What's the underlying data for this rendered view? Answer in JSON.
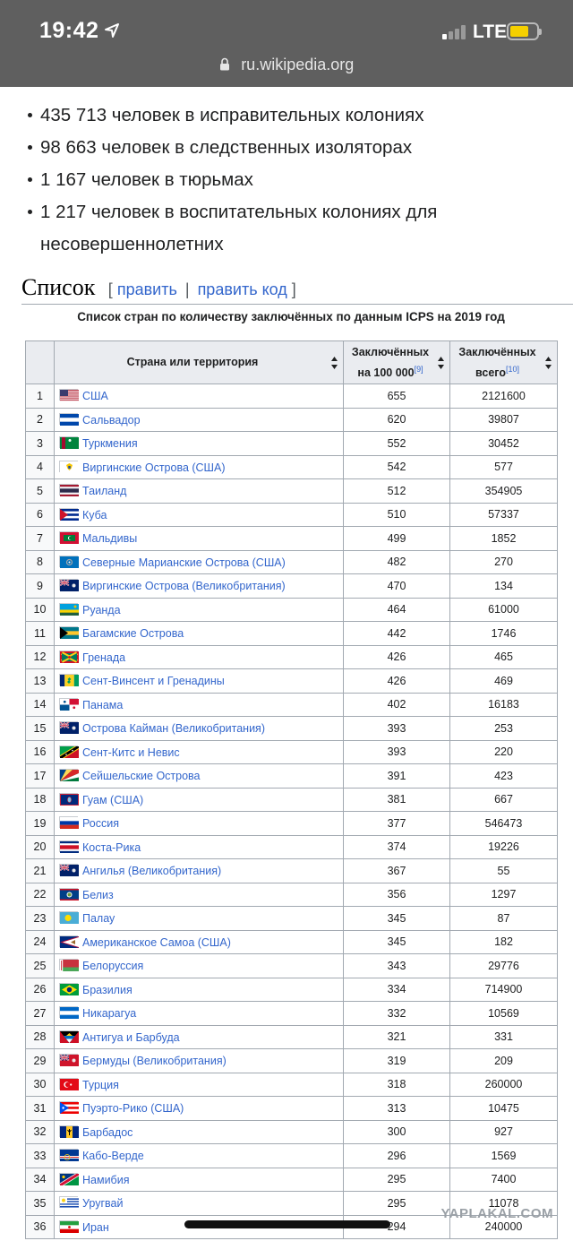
{
  "status_bar": {
    "time": "19:42",
    "network": "LTE"
  },
  "address_bar": {
    "url": "ru.wikipedia.org"
  },
  "bullets": [
    "435 713 человек в исправительных колониях",
    "98 663 человек в следственных изоляторах",
    "1 167 человек в тюрьмах",
    "1 217 человек в воспитательных колониях для несовершеннолетних"
  ],
  "section": {
    "title": "Список",
    "open_bracket": "[",
    "edit": "править",
    "separator": "|",
    "edit_code": "править код",
    "close_bracket": "]"
  },
  "table": {
    "caption": "Список стран по количеству заключённых по данным ICPS на 2019 год",
    "headers": {
      "country": "Страна или территория",
      "per100k": "Заключённых на 100 000",
      "per100k_ref": "[9]",
      "total": "Заключённых всего",
      "total_ref": "[10]"
    },
    "rows": [
      {
        "n": "1",
        "country": "США",
        "flag": "usa",
        "per100k": "655",
        "total": "2121600"
      },
      {
        "n": "2",
        "country": "Сальвадор",
        "flag": "el-salvador",
        "per100k": "620",
        "total": "39807"
      },
      {
        "n": "3",
        "country": "Туркмения",
        "flag": "turkmenistan",
        "per100k": "552",
        "total": "30452"
      },
      {
        "n": "4",
        "country": "Виргинские Острова (США)",
        "flag": "us-virgin-islands",
        "per100k": "542",
        "total": "577"
      },
      {
        "n": "5",
        "country": "Таиланд",
        "flag": "thailand",
        "per100k": "512",
        "total": "354905"
      },
      {
        "n": "6",
        "country": "Куба",
        "flag": "cuba",
        "per100k": "510",
        "total": "57337"
      },
      {
        "n": "7",
        "country": "Мальдивы",
        "flag": "maldives",
        "per100k": "499",
        "total": "1852"
      },
      {
        "n": "8",
        "country": "Северные Марианские Острова (США)",
        "flag": "northern-mariana-islands",
        "per100k": "482",
        "total": "270"
      },
      {
        "n": "9",
        "country": "Виргинские Острова (Великобритания)",
        "flag": "british-virgin-islands",
        "per100k": "470",
        "total": "134"
      },
      {
        "n": "10",
        "country": "Руанда",
        "flag": "rwanda",
        "per100k": "464",
        "total": "61000"
      },
      {
        "n": "11",
        "country": "Багамские Острова",
        "flag": "bahamas",
        "per100k": "442",
        "total": "1746"
      },
      {
        "n": "12",
        "country": "Гренада",
        "flag": "grenada",
        "per100k": "426",
        "total": "465"
      },
      {
        "n": "13",
        "country": "Сент-Винсент и Гренадины",
        "flag": "saint-vincent",
        "per100k": "426",
        "total": "469"
      },
      {
        "n": "14",
        "country": "Панама",
        "flag": "panama",
        "per100k": "402",
        "total": "16183"
      },
      {
        "n": "15",
        "country": "Острова Кайман (Великобритания)",
        "flag": "cayman-islands",
        "per100k": "393",
        "total": "253"
      },
      {
        "n": "16",
        "country": "Сент-Китс и Невис",
        "flag": "saint-kitts",
        "per100k": "393",
        "total": "220"
      },
      {
        "n": "17",
        "country": "Сейшельские Острова",
        "flag": "seychelles",
        "per100k": "391",
        "total": "423"
      },
      {
        "n": "18",
        "country": "Гуам (США)",
        "flag": "guam",
        "per100k": "381",
        "total": "667"
      },
      {
        "n": "19",
        "country": "Россия",
        "flag": "russia",
        "per100k": "377",
        "total": "546473"
      },
      {
        "n": "20",
        "country": "Коста-Рика",
        "flag": "costa-rica",
        "per100k": "374",
        "total": "19226"
      },
      {
        "n": "21",
        "country": "Ангилья (Великобритания)",
        "flag": "anguilla",
        "per100k": "367",
        "total": "55"
      },
      {
        "n": "22",
        "country": "Белиз",
        "flag": "belize",
        "per100k": "356",
        "total": "1297"
      },
      {
        "n": "23",
        "country": "Палау",
        "flag": "palau",
        "per100k": "345",
        "total": "87"
      },
      {
        "n": "24",
        "country": "Американское Самоа (США)",
        "flag": "american-samoa",
        "per100k": "345",
        "total": "182"
      },
      {
        "n": "25",
        "country": "Белоруссия",
        "flag": "belarus",
        "per100k": "343",
        "total": "29776"
      },
      {
        "n": "26",
        "country": "Бразилия",
        "flag": "brazil",
        "per100k": "334",
        "total": "714900"
      },
      {
        "n": "27",
        "country": "Никарагуа",
        "flag": "nicaragua",
        "per100k": "332",
        "total": "10569"
      },
      {
        "n": "28",
        "country": "Антигуа и Барбуда",
        "flag": "antigua",
        "per100k": "321",
        "total": "331"
      },
      {
        "n": "29",
        "country": "Бермуды (Великобритания)",
        "flag": "bermuda",
        "per100k": "319",
        "total": "209"
      },
      {
        "n": "30",
        "country": "Турция",
        "flag": "turkey",
        "per100k": "318",
        "total": "260000"
      },
      {
        "n": "31",
        "country": "Пуэрто-Рико (США)",
        "flag": "puerto-rico",
        "per100k": "313",
        "total": "10475"
      },
      {
        "n": "32",
        "country": "Барбадос",
        "flag": "barbados",
        "per100k": "300",
        "total": "927"
      },
      {
        "n": "33",
        "country": "Кабо-Верде",
        "flag": "cape-verde",
        "per100k": "296",
        "total": "1569"
      },
      {
        "n": "34",
        "country": "Намибия",
        "flag": "namibia",
        "per100k": "295",
        "total": "7400"
      },
      {
        "n": "35",
        "country": "Уругвай",
        "flag": "uruguay",
        "per100k": "295",
        "total": "11078"
      },
      {
        "n": "36",
        "country": "Иран",
        "flag": "iran",
        "per100k": "294",
        "total": "240000"
      }
    ]
  },
  "watermark": "YAPLAKAL.COM",
  "colors": {
    "link": "#3366cc",
    "header_bg": "#eaecf0",
    "border": "#a2a9b1",
    "topbar": "#5f5f5f"
  }
}
